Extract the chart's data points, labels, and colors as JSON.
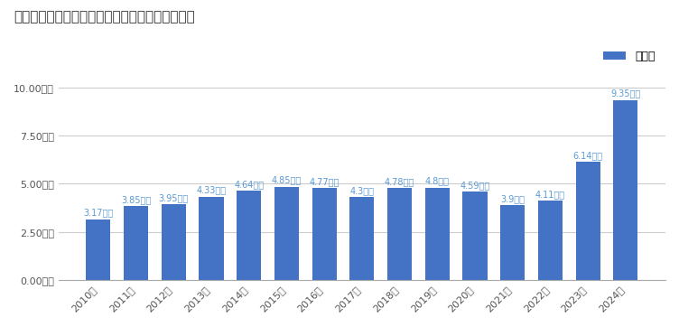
{
  "title": "三井住友フィナンシャルグループの売上高の推移",
  "years": [
    "2010年",
    "2011年",
    "2012年",
    "2013年",
    "2014年",
    "2015年",
    "2016年",
    "2017年",
    "2018年",
    "2019年",
    "2020年",
    "2021年",
    "2022年",
    "2023年",
    "2024年"
  ],
  "values": [
    3.17,
    3.85,
    3.95,
    4.33,
    4.64,
    4.85,
    4.77,
    4.3,
    4.78,
    4.8,
    4.59,
    3.9,
    4.11,
    6.14,
    9.35
  ],
  "bar_color": "#4472C4",
  "label_color": "#5B9BD5",
  "legend_label": "売上高",
  "ylabel_ticks": [
    "0.00兆円",
    "2.50兆円",
    "5.00兆円",
    "7.50兆円",
    "10.00兆円"
  ],
  "ytick_values": [
    0,
    2.5,
    5.0,
    7.5,
    10.0
  ],
  "ylim": [
    0,
    10.8
  ],
  "background_color": "#ffffff",
  "grid_color": "#cccccc",
  "title_fontsize": 11,
  "label_fontsize": 7.0,
  "tick_fontsize": 8.0,
  "legend_fontsize": 9
}
